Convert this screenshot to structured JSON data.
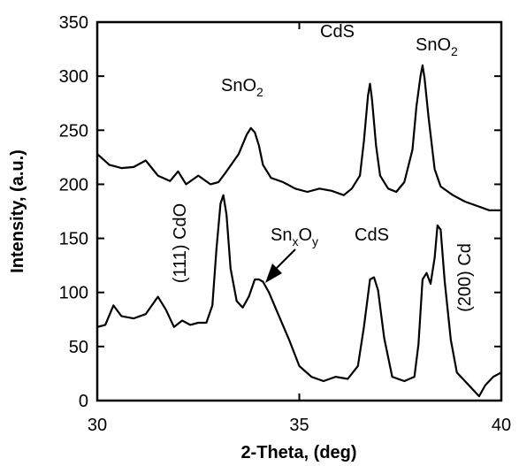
{
  "chart_data": {
    "type": "line",
    "title": "",
    "xlabel": "2-Theta, (deg)",
    "ylabel": "Intensity, (a.u.)",
    "xlim": [
      30,
      40
    ],
    "ylim": [
      0,
      350
    ],
    "xticks": [
      30,
      35,
      40
    ],
    "yticks": [
      0,
      50,
      100,
      150,
      200,
      250,
      300,
      350
    ],
    "grid": false,
    "legend": "none",
    "series": [
      {
        "x": [
          30.0,
          30.3,
          30.6,
          30.9,
          31.2,
          31.5,
          31.8,
          32.0,
          32.2,
          32.5,
          32.8,
          33.0,
          33.2,
          33.5,
          33.7,
          33.8,
          33.9,
          34.0,
          34.1,
          34.3,
          34.6,
          34.9,
          35.2,
          35.5,
          35.8,
          36.1,
          36.3,
          36.5,
          36.6,
          36.7,
          36.75,
          36.8,
          36.9,
          37.0,
          37.2,
          37.4,
          37.6,
          37.8,
          37.9,
          38.0,
          38.05,
          38.1,
          38.2,
          38.35,
          38.5,
          38.8,
          39.1,
          39.4,
          39.7,
          40.0
        ],
        "values": [
          228,
          218,
          215,
          216,
          222,
          208,
          203,
          212,
          200,
          208,
          200,
          202,
          212,
          228,
          246,
          252,
          248,
          236,
          218,
          206,
          202,
          196,
          193,
          196,
          194,
          190,
          196,
          208,
          240,
          282,
          293,
          278,
          236,
          208,
          196,
          193,
          202,
          232,
          272,
          300,
          310,
          298,
          262,
          214,
          198,
          190,
          184,
          180,
          176,
          176
        ]
      },
      {
        "x": [
          30.0,
          30.2,
          30.4,
          30.6,
          30.9,
          31.2,
          31.5,
          31.7,
          31.9,
          32.1,
          32.3,
          32.5,
          32.7,
          32.85,
          32.95,
          33.05,
          33.12,
          33.2,
          33.3,
          33.45,
          33.6,
          33.75,
          33.9,
          34.0,
          34.1,
          34.25,
          34.5,
          34.75,
          35.0,
          35.3,
          35.6,
          35.9,
          36.2,
          36.45,
          36.6,
          36.75,
          36.85,
          36.95,
          37.1,
          37.3,
          37.6,
          37.85,
          37.95,
          38.05,
          38.15,
          38.25,
          38.35,
          38.42,
          38.5,
          38.6,
          38.75,
          38.9,
          39.1,
          39.3,
          39.45,
          39.6,
          39.8,
          40.0
        ],
        "values": [
          68,
          70,
          88,
          78,
          76,
          80,
          96,
          84,
          68,
          74,
          70,
          72,
          72,
          88,
          140,
          182,
          190,
          172,
          122,
          92,
          86,
          96,
          112,
          112,
          110,
          100,
          78,
          56,
          32,
          22,
          18,
          22,
          20,
          32,
          68,
          112,
          114,
          102,
          58,
          22,
          18,
          22,
          52,
          112,
          118,
          108,
          132,
          162,
          158,
          110,
          56,
          26,
          18,
          10,
          4,
          14,
          22,
          26
        ]
      }
    ],
    "annotations": [
      {
        "text": "SnO",
        "sub": "2",
        "x": 33.8,
        "y": 285
      },
      {
        "text": "CdS",
        "x": 36.8,
        "y": 335
      },
      {
        "text": "SnO",
        "sub": "2",
        "x": 38.2,
        "y": 320
      },
      {
        "text": "(111) CdO",
        "x": 32.6,
        "y": 145,
        "rotated": true
      },
      {
        "text": "Sn",
        "sub1": "x",
        "mid": "O",
        "sub2": "y",
        "x": 34.2,
        "y": 147
      },
      {
        "text": "CdS",
        "x": 36.3,
        "y": 147
      },
      {
        "text": "(200) Cd",
        "x": 38.7,
        "y": 120,
        "rotated": true
      }
    ]
  }
}
